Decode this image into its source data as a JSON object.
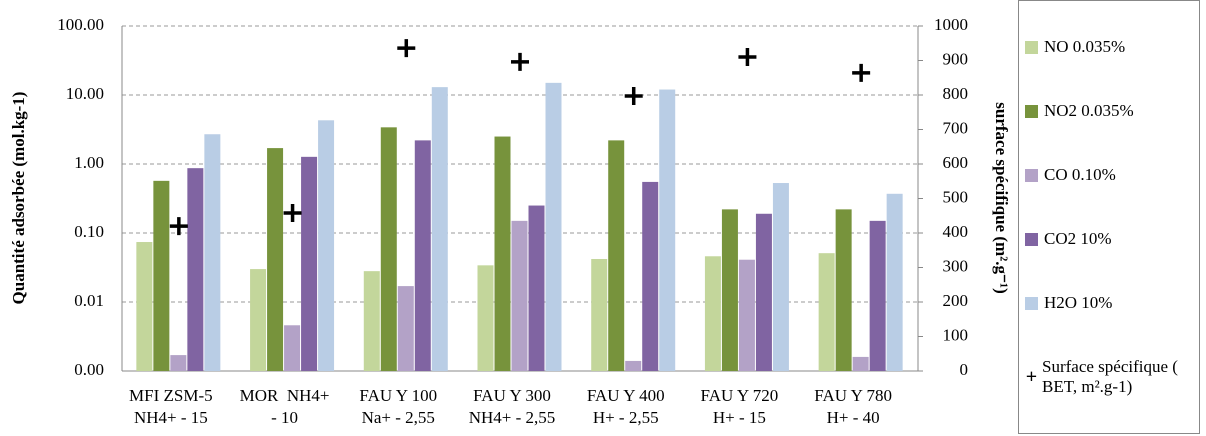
{
  "chart_data": {
    "type": "bar",
    "y_label": "Quantité adsorbée (mol.kg-1)",
    "y2_label": "surface spécifique (m².g⁻¹)",
    "categories": [
      [
        "MFI ZSM-5",
        "NH4+ - 15"
      ],
      [
        "MOR  NH4+",
        "- 10"
      ],
      [
        "FAU Y 100",
        "Na+ - 2,55"
      ],
      [
        "FAU Y 300",
        "NH4+ - 2,55"
      ],
      [
        "FAU Y 400",
        "H+ - 2,55"
      ],
      [
        "FAU Y 720",
        "H+ - 15"
      ],
      [
        "FAU Y 780",
        "H+ - 40"
      ]
    ],
    "log_scale": true,
    "grid": true,
    "legend": "right",
    "ylim": [
      0.001,
      100
    ],
    "yticks": [
      {
        "value": 0.001,
        "label": "0.00"
      },
      0.01,
      {
        "value": 0.1,
        "label": "0.10"
      },
      {
        "value": 1,
        "label": "1.00"
      },
      {
        "value": 10,
        "label": "10.00"
      },
      {
        "value": 100,
        "label": "100.00"
      }
    ],
    "y2lim": [
      0,
      1000
    ],
    "y2ticks": [
      0,
      100,
      200,
      300,
      400,
      500,
      600,
      700,
      800,
      900,
      1000
    ],
    "series": [
      {
        "name": "NO 0.035%",
        "type": "bar",
        "color": "#c3d69b",
        "values": [
          0.074,
          0.03,
          0.028,
          0.034,
          0.042,
          0.046,
          0.051
        ]
      },
      {
        "name": "NO2 0.035%",
        "type": "bar",
        "color": "#77933c",
        "values": [
          0.57,
          1.7,
          3.4,
          2.5,
          2.2,
          0.22,
          0.22
        ]
      },
      {
        "name": "CO 0.10%",
        "type": "bar",
        "color": "#b3a2c7",
        "values": [
          0.0017,
          0.0046,
          0.017,
          0.15,
          0.0014,
          0.041,
          0.0016
        ]
      },
      {
        "name": "CO2 10%",
        "type": "bar",
        "color": "#8064a2",
        "values": [
          0.87,
          1.27,
          2.2,
          0.25,
          0.55,
          0.19,
          0.15
        ]
      },
      {
        "name": "H2O 10%",
        "type": "bar",
        "color": "#b9cde5",
        "values": [
          2.7,
          4.3,
          13,
          15,
          12,
          0.53,
          0.37
        ]
      },
      {
        "name": "Surface spécifique ( BET, m².g-1)",
        "type": "scatter",
        "axis": "y2",
        "marker": "+",
        "color": "#000000",
        "values": [
          420,
          458,
          936,
          896,
          797,
          910,
          864
        ]
      }
    ]
  }
}
